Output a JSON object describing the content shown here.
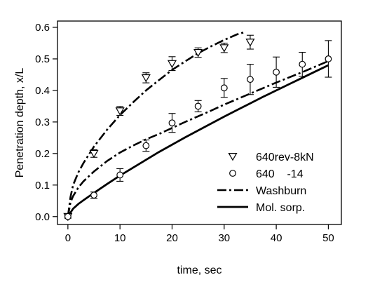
{
  "chart_data": {
    "type": "scatter",
    "xlabel": "time, sec",
    "ylabel": "Penetration depth, x/L",
    "xlim": [
      -2,
      52.5
    ],
    "ylim": [
      -0.025,
      0.62
    ],
    "xticks": [
      0,
      10,
      20,
      30,
      40,
      50
    ],
    "yticks": [
      0.0,
      0.1,
      0.2,
      0.3,
      0.4,
      0.5,
      0.6
    ],
    "ytick_labels": [
      "0.0",
      "0.1",
      "0.2",
      "0.3",
      "0.4",
      "0.5",
      "0.6"
    ],
    "grid": false,
    "legend_position": "bottom-right",
    "series": [
      {
        "name": "640rev-8kN",
        "kind": "points",
        "marker": "triangle-down",
        "x": [
          0,
          5,
          10,
          15,
          20,
          25,
          30,
          35
        ],
        "y": [
          0.0,
          0.2,
          0.335,
          0.44,
          0.485,
          0.52,
          0.535,
          0.553
        ],
        "err": [
          0.005,
          0.012,
          0.014,
          0.016,
          0.022,
          0.015,
          0.015,
          0.022
        ]
      },
      {
        "name": "640    -14",
        "kind": "points",
        "marker": "circle",
        "x": [
          0,
          5,
          10,
          15,
          20,
          25,
          30,
          35,
          40,
          45,
          50
        ],
        "y": [
          0.0,
          0.068,
          0.132,
          0.225,
          0.297,
          0.35,
          0.408,
          0.435,
          0.458,
          0.483,
          0.5
        ],
        "err": [
          0.005,
          0.01,
          0.02,
          0.018,
          0.03,
          0.018,
          0.03,
          0.048,
          0.048,
          0.038,
          0.058
        ]
      },
      {
        "name": "Washburn",
        "kind": "line",
        "dash": "dashdot",
        "x": [
          0,
          0.5,
          1,
          2,
          3,
          5,
          7.5,
          10,
          12.5,
          15,
          17.5,
          20,
          22.5,
          25,
          27.5,
          30,
          32.5,
          34
        ],
        "y": [
          0.0,
          0.062,
          0.1,
          0.14,
          0.17,
          0.222,
          0.275,
          0.322,
          0.362,
          0.4,
          0.433,
          0.465,
          0.492,
          0.518,
          0.54,
          0.56,
          0.578,
          0.585
        ]
      },
      {
        "name": "Washburn",
        "kind": "line",
        "dash": "dashdot",
        "x": [
          0,
          0.5,
          1,
          2,
          3,
          5,
          7.5,
          10,
          12.5,
          15,
          17.5,
          20,
          22.5,
          25,
          27.5,
          30,
          35,
          40,
          45,
          50
        ],
        "y": [
          0.0,
          0.045,
          0.065,
          0.092,
          0.112,
          0.143,
          0.176,
          0.203,
          0.225,
          0.245,
          0.262,
          0.281,
          0.3,
          0.318,
          0.336,
          0.355,
          0.39,
          0.425,
          0.458,
          0.493
        ]
      },
      {
        "name": "Mol. sorp.",
        "kind": "line",
        "dash": "solid",
        "x": [
          0,
          1,
          2,
          3,
          5,
          7.5,
          10,
          12.5,
          15,
          17.5,
          20,
          22.5,
          25,
          27.5,
          30,
          32.5,
          35,
          37.5,
          40,
          42.5,
          45,
          47.5,
          50
        ],
        "y": [
          0.0,
          0.025,
          0.04,
          0.052,
          0.075,
          0.103,
          0.13,
          0.155,
          0.18,
          0.205,
          0.228,
          0.251,
          0.273,
          0.295,
          0.317,
          0.338,
          0.359,
          0.38,
          0.4,
          0.42,
          0.44,
          0.46,
          0.48
        ]
      }
    ],
    "legend": [
      {
        "label": "640rev-8kN",
        "symbol": "triangle-down"
      },
      {
        "label": "640    -14",
        "symbol": "circle"
      },
      {
        "label": "Washburn",
        "symbol": "dashdot-line"
      },
      {
        "label": "Mol. sorp.",
        "symbol": "solid-line"
      }
    ]
  }
}
